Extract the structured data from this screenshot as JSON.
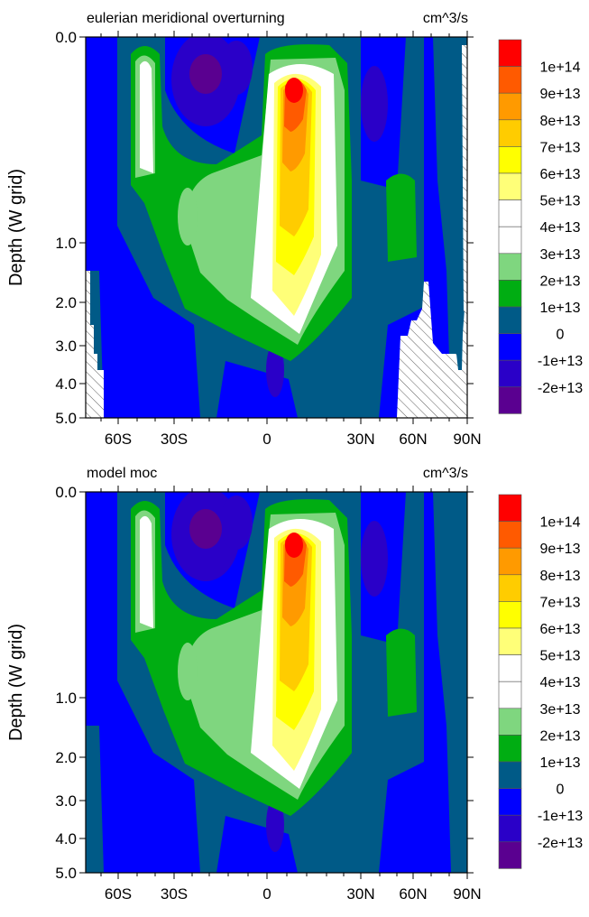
{
  "chart_data": [
    {
      "type": "heatmap",
      "subtype": "filled-contour",
      "title": "eulerian meridional overturning",
      "units": "cm^3/s",
      "ylabel": "Depth (W grid)",
      "xlabel": "",
      "x_tick_labels": [
        "60S",
        "30S",
        "0",
        "30N",
        "60N",
        "90N"
      ],
      "y_tick_labels": [
        "0.0",
        "1.0",
        "2.0",
        "3.0",
        "4.0",
        "5.0"
      ],
      "ylim": [
        0.0,
        5.0
      ],
      "colorbar_labels": [
        "1e+14",
        "9e+13",
        "8e+13",
        "7e+13",
        "6e+13",
        "5e+13",
        "4e+13",
        "3e+13",
        "2e+13",
        "1e+13",
        "0",
        "-1e+13",
        "-2e+13"
      ],
      "colorbar_colors": [
        "#ff0000",
        "#ff5a00",
        "#ff9a00",
        "#ffcc00",
        "#ffff00",
        "#ffff78",
        "#ffffff",
        "#ffffff",
        "#7fd67f",
        "#00ad12",
        "#005a87",
        "#0000ff",
        "#2a00c8",
        "#5a0090"
      ],
      "max_value_approx": 100000000000000.0,
      "max_location": "about 5N, upper 0.3 depth",
      "has_land_mask": true
    },
    {
      "type": "heatmap",
      "subtype": "filled-contour",
      "title": "model moc",
      "units": "cm^3/s",
      "ylabel": "Depth (W grid)",
      "xlabel": "",
      "x_tick_labels": [
        "60S",
        "30S",
        "0",
        "30N",
        "60N",
        "90N"
      ],
      "y_tick_labels": [
        "0.0",
        "1.0",
        "2.0",
        "3.0",
        "4.0",
        "5.0"
      ],
      "ylim": [
        0.0,
        5.0
      ],
      "colorbar_labels": [
        "1e+14",
        "9e+13",
        "8e+13",
        "7e+13",
        "6e+13",
        "5e+13",
        "4e+13",
        "3e+13",
        "2e+13",
        "1e+13",
        "0",
        "-1e+13",
        "-2e+13"
      ],
      "colorbar_colors": [
        "#ff0000",
        "#ff5a00",
        "#ff9a00",
        "#ffcc00",
        "#ffff00",
        "#ffff78",
        "#ffffff",
        "#ffffff",
        "#7fd67f",
        "#00ad12",
        "#005a87",
        "#0000ff",
        "#2a00c8",
        "#5a0090"
      ],
      "max_value_approx": 100000000000000.0,
      "max_location": "about 5N, upper 0.3 depth",
      "has_land_mask": false
    }
  ]
}
